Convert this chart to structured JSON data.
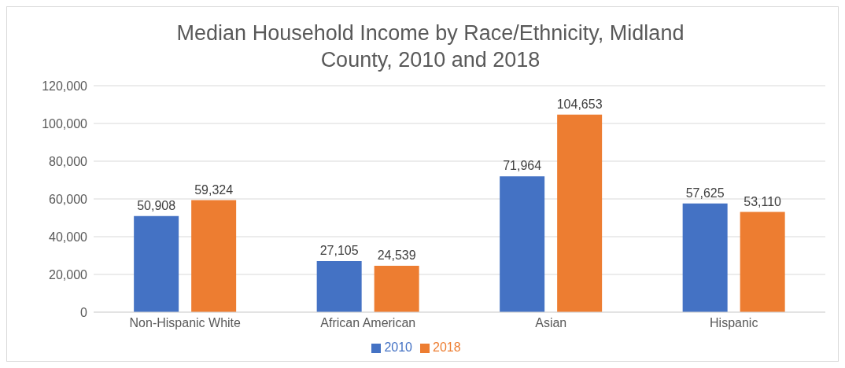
{
  "chart_data": {
    "type": "bar",
    "title": "Median Household Income by Race/Ethnicity, Midland County, 2010 and 2018",
    "categories": [
      "Non-Hispanic White",
      "African American",
      "Asian",
      "Hispanic"
    ],
    "series": [
      {
        "name": "2010",
        "color": "#4472c4",
        "values": [
          50908,
          27105,
          71964,
          57625
        ],
        "value_labels": [
          "50,908",
          "27,105",
          "71,964",
          "57,625"
        ]
      },
      {
        "name": "2018",
        "color": "#ed7d31",
        "values": [
          59324,
          24539,
          104653,
          53110
        ],
        "value_labels": [
          "59,324",
          "24,539",
          "104,653",
          "53,110"
        ]
      }
    ],
    "ylim": [
      0,
      120000
    ],
    "yticks": [
      {
        "value": 0,
        "label": "0"
      },
      {
        "value": 20000,
        "label": "20,000"
      },
      {
        "value": 40000,
        "label": "40,000"
      },
      {
        "value": 60000,
        "label": "60,000"
      },
      {
        "value": 80000,
        "label": "80,000"
      },
      {
        "value": 100000,
        "label": "100,000"
      },
      {
        "value": 120000,
        "label": "120,000"
      }
    ],
    "grid": "y",
    "legend": "bottom"
  }
}
